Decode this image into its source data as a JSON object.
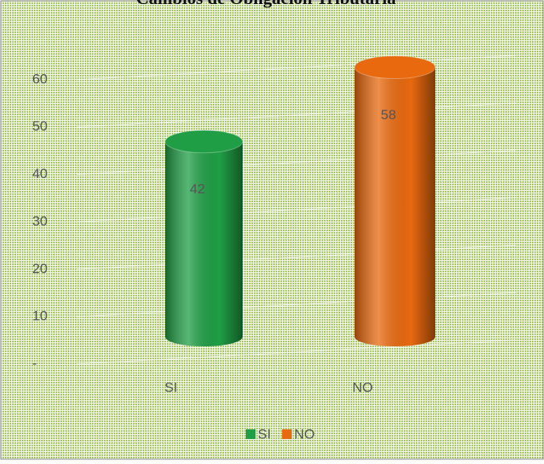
{
  "chart_data": {
    "type": "bar",
    "title": "Cambios de Obligación Tributaria",
    "categories": [
      "SI",
      "NO"
    ],
    "values": [
      42,
      58
    ],
    "colors": [
      "#1f9e45",
      "#e8690e"
    ],
    "ylim": [
      0,
      70
    ],
    "yticks": [
      {
        "value": 0,
        "label": "-"
      },
      10,
      20,
      30,
      40,
      50,
      60
    ],
    "grid": true,
    "legend": "bottom"
  }
}
